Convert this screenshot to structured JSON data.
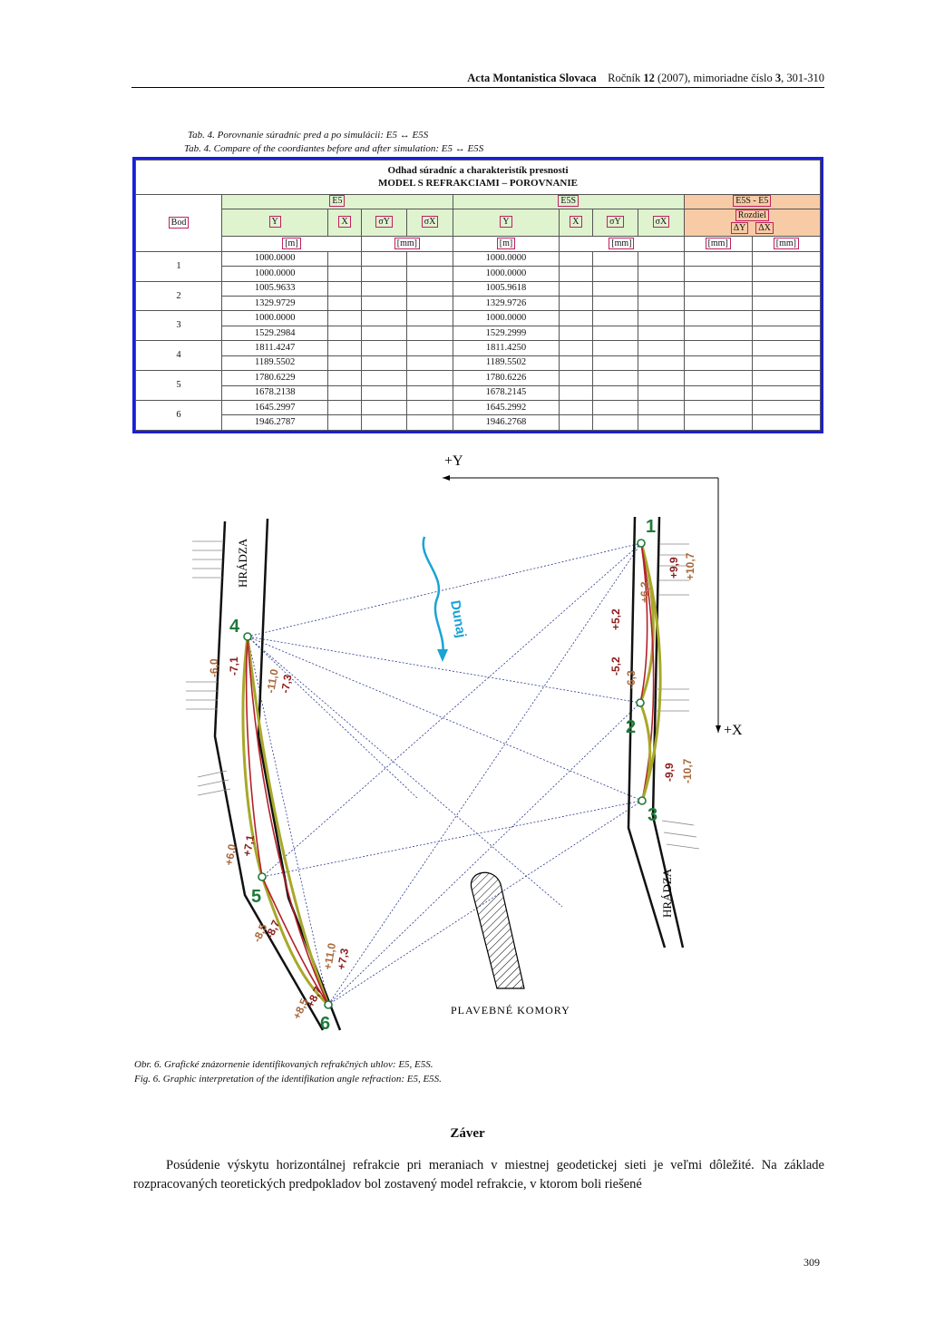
{
  "header": {
    "journal": "Acta Montanistica Slovaca",
    "rocnik_label": "Ročník",
    "volume": "12",
    "year_issue": "(2007), mimoriadne číslo",
    "issue": "3",
    "pages": ", 301-310"
  },
  "table_caption": {
    "sk": "Tab. 4.  Porovnanie súradníc pred a po simulácii: E5 ↔ E5S",
    "en": "Tab. 4.  Compare of the coordiantes before and after simulation: E5 ↔ E5S"
  },
  "table": {
    "title1": "Odhad súradníc a charakteristík presnosti",
    "title2": "MODEL S REFRAKCIAMI – POROVNANIE",
    "group_e5": "E5",
    "group_e5s": "E5S",
    "group_diff": "E5S - E5",
    "diff_label": "Rozdiel",
    "bod": "Bod",
    "cols": [
      "Y",
      "X",
      "σY",
      "σX",
      "Y",
      "X",
      "σY",
      "σX",
      "ΔY",
      "ΔX"
    ],
    "units": [
      "[m]",
      "[mm]",
      "[m]",
      "[mm]",
      "[mm]",
      "[mm]"
    ],
    "points": [
      "1",
      "2",
      "3",
      "4",
      "5",
      "6"
    ],
    "rows": [
      [
        "1000.0000",
        "",
        "1000.0000",
        "",
        "",
        ""
      ],
      [
        "1000.0000",
        "",
        "1000.0000",
        "",
        "",
        ""
      ],
      [
        "1005.9633",
        "",
        "1005.9618",
        "",
        "",
        ""
      ],
      [
        "1329.9729",
        "",
        "1329.9726",
        "",
        "",
        ""
      ],
      [
        "1000.0000",
        "",
        "1000.0000",
        "",
        "",
        ""
      ],
      [
        "1529.2984",
        "",
        "1529.2999",
        "",
        "",
        ""
      ],
      [
        "1811.4247",
        "",
        "1811.4250",
        "",
        "",
        ""
      ],
      [
        "1189.5502",
        "",
        "1189.5502",
        "",
        "",
        ""
      ],
      [
        "1780.6229",
        "",
        "1780.6226",
        "",
        "",
        ""
      ],
      [
        "1678.2138",
        "",
        "1678.2145",
        "",
        "",
        ""
      ],
      [
        "1645.2997",
        "",
        "1645.2992",
        "",
        "",
        ""
      ],
      [
        "1946.2787",
        "",
        "1946.2768",
        "",
        "",
        ""
      ]
    ]
  },
  "figure": {
    "axis_y": "+Y",
    "axis_x": "+X",
    "river": "Dunaj",
    "dam_left": "HRÁDZA",
    "dam_right": "HRÁDZA",
    "locks": "PLAVEBNÉ KOMORY",
    "points": [
      "1",
      "2",
      "3",
      "4",
      "5",
      "6"
    ],
    "angle_labels": {
      "a": "+9,9",
      "b": "+10,7",
      "c": "+6,3",
      "d": "+5,2",
      "e": "-5,2",
      "f": "-6,3",
      "g": "-9,9",
      "h": "-10,7",
      "i": "-6,0",
      "j": "-7,1",
      "k": "-11,0",
      "l": "-7,3",
      "m": "+6,0",
      "n": "+7,1",
      "o": "-8,5",
      "p": "-8,7",
      "q": "+11,0",
      "r": "+7,3",
      "s": "+8,5",
      "t": "+8,7"
    }
  },
  "fig_caption": {
    "sk": "Obr. 6.  Grafické znázornenie identifikovaných refrakčných uhlov: E5, E5S.",
    "en": "Fig. 6.  Graphic interpretation of the identifikation angle refraction: E5, E5S."
  },
  "section_title": "Záver",
  "paragraph": "Posúdenie výskytu horizontálnej refrakcie pri meraniach v miestnej geodetickej sieti je veľmi dôležité. Na základe rozpracovaných teoretických predpokladov bol zostavený model refrakcie, v ktorom boli riešené",
  "page_number": "309",
  "colors": {
    "table_border": "#1a1fd6",
    "green_pt": "#1f7a3a",
    "brown_lbl": "#a8683a",
    "red_lbl": "#8b1a1a",
    "river": "#1aa3d6"
  }
}
